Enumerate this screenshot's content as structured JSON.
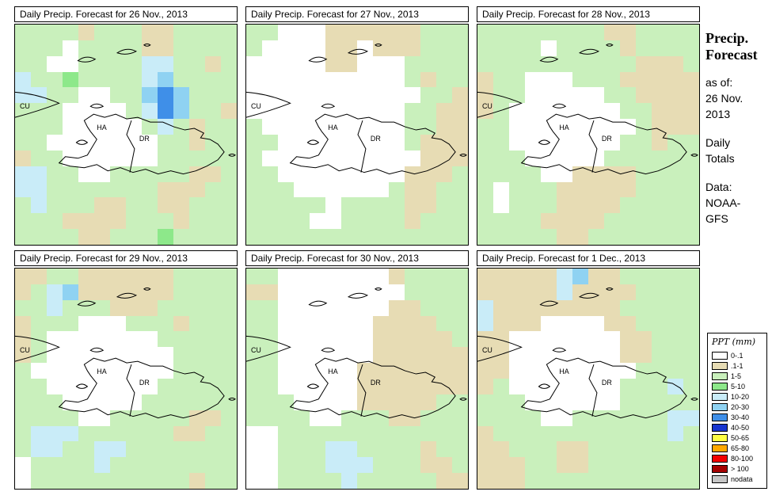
{
  "panels": [
    {
      "title": "Daily Precip. Forecast for 26 Nov., 2013",
      "grid": [
        "GGGGTGGGTTGGGG",
        "GGGWGGGGTTGGGG",
        "GGWWGGGGccGGTG",
        "cGGDGGGGcbGGGG",
        "ccGGWWGGbBbGGG",
        "GGGWWWWGcBbGGT",
        "GGGWWWWWGcGTGG",
        "GGWWWWWWWGGTGG",
        "TGGWWWWWWGGGGG",
        "ccGGWWGGGGGTTG",
        "ccGGGGGGGTTTGG",
        "GcGGGTTGGTTGGG",
        "GGGTTTTGGGTGGG",
        "GGGGTTGGGDGGGG"
      ]
    },
    {
      "title": "Daily Precip. Forecast for 27 Nov., 2013",
      "grid": [
        "GGWWWTTTTTTGGG",
        "GWWWWTTWTTTGGG",
        "WWWWWTTWWWGGGG",
        "WWWWWWWWWWGTGG",
        "WWWWWWWWWWWGGT",
        "WWWWWWWWWWGGTT",
        "GWWWWWWWWWGGTT",
        "GGWWWWWWWWGTTT",
        "GWWWWWWWWWWTTT",
        "GGWWWWWWWWTTTG",
        "GGGWWWWWWGTTGG",
        "GGGGGWGGGGTTGG",
        "GGGGWWGGGGTGGG",
        "GGGGGGGGGGGGGG"
      ]
    },
    {
      "title": "Daily Precip. Forecast for 28 Nov., 2013",
      "grid": [
        "GGGGGGGGTTGGGG",
        "GGGGWGGGGTGGGG",
        "GGGGGGGGGGTTTG",
        "TGGWWWGGGTTTTT",
        "TGGWWWWWGGTTTT",
        "TGWWWWWWWGGTTT",
        "GGWWWWWWWWGTTT",
        "GGWWWWWWWGGTGG",
        "GGGWWWWWGGGGGG",
        "GGGGWWTTTTGGGG",
        "GWGGGTTTTTGGGG",
        "GWGGGTTTTGGGGG",
        "GGGGTTTTGGGGGG",
        "GGGGGTTGGGGGGG"
      ]
    },
    {
      "title": "Daily Precip. Forecast for 29 Nov., 2013",
      "grid": [
        "TTGGTTTTTTGGGG",
        "TGcbTTTTTTGGGG",
        "GGcGGGTTTGGGGG",
        "TGGGWWWGGGTGGG",
        "TGWWWWWWWGGGGG",
        "TGWWWWWWWWGGGG",
        "GWWWWWWWWWGGGG",
        "GGWWWWWWWGGGGG",
        "GGGWWWWWGGGGGG",
        "GGGGWWGGGGGTTG",
        "GcccGGGGGGTTGG",
        "GccGGccGGGGGGG",
        "WGGGGcGGGGGGGG",
        "WGGGGGGGGGGTGG"
      ]
    },
    {
      "title": "Daily Precip. Forecast for 30 Nov., 2013",
      "grid": [
        "GGWWWWWWWTGGGG",
        "TTWWWWWWWWGGGG",
        "GGWWWWWWWTTGGG",
        "GGWWWWWWTTTTGG",
        "GGWWWWWWTTTTTG",
        "GGWWWWWWTTTTTT",
        "GGWWWWWTTTTTTT",
        "GGWWWWWTTTTTTT",
        "GGGWWWWTTTTTGG",
        "GGGGWWGGGTTGGG",
        "WWGGGGGGGGGGGG",
        "WWGGGccGGGGTGG",
        "WWGGGcccGGGTTG",
        "WWGGGGcGGGGGTT"
      ]
    },
    {
      "title": "Daily Precip. Forecast for 1 Dec., 2013",
      "grid": [
        "TTTTTcbTTGGGGG",
        "TTTTTcTTTTGGGG",
        "cTTTTTTTTGGGGG",
        "cTTTWWWWTTGGGG",
        "TTWWWWWWWTTGGG",
        "TTWWWWWWWTTGGG",
        "TTWWWWWWWWGGGG",
        "TGWWWWWWWGGGcG",
        "GGGWWWWWWGGGGG",
        "GGGGWWGGGGGGcc",
        "TGGGGGGGGGGGcG",
        "TTGGGTTGGGGGGG",
        "TTTGGTTGGGGGGG",
        "TTTGGGGGGGGGGG"
      ]
    }
  ],
  "palette": {
    "W": "#ffffff",
    "T": "#e7dcb4",
    "G": "#c9f0bc",
    "D": "#8de88a",
    "c": "#c9ecf8",
    "b": "#8fd2f2",
    "B": "#3f8fe8"
  },
  "map_labels": {
    "cu": "CU",
    "ha": "HA",
    "dr": "DR"
  },
  "sidebar": {
    "title": [
      "Precip.",
      "Forecast"
    ],
    "lines": [
      "as of:",
      "26 Nov.",
      "2013",
      "Daily",
      "Totals",
      "Data:",
      "NOAA-",
      "GFS"
    ]
  },
  "legend": {
    "title": "PPT (mm)",
    "entries": [
      {
        "label": "0-.1",
        "color": "#ffffff"
      },
      {
        "label": ".1-1",
        "color": "#e7dcb4"
      },
      {
        "label": "1-5",
        "color": "#c9f0bc"
      },
      {
        "label": "5-10",
        "color": "#8de88a"
      },
      {
        "label": "10-20",
        "color": "#c9ecf8"
      },
      {
        "label": "20-30",
        "color": "#8fd2f2"
      },
      {
        "label": "30-40",
        "color": "#3f8fe8"
      },
      {
        "label": "40-50",
        "color": "#1836cf"
      },
      {
        "label": "50-65",
        "color": "#ffff42"
      },
      {
        "label": "65-80",
        "color": "#ffa800"
      },
      {
        "label": "80-100",
        "color": "#f20000"
      },
      {
        "label": "> 100",
        "color": "#a50000"
      },
      {
        "label": "nodata",
        "color": "#c6c6c6"
      }
    ]
  }
}
